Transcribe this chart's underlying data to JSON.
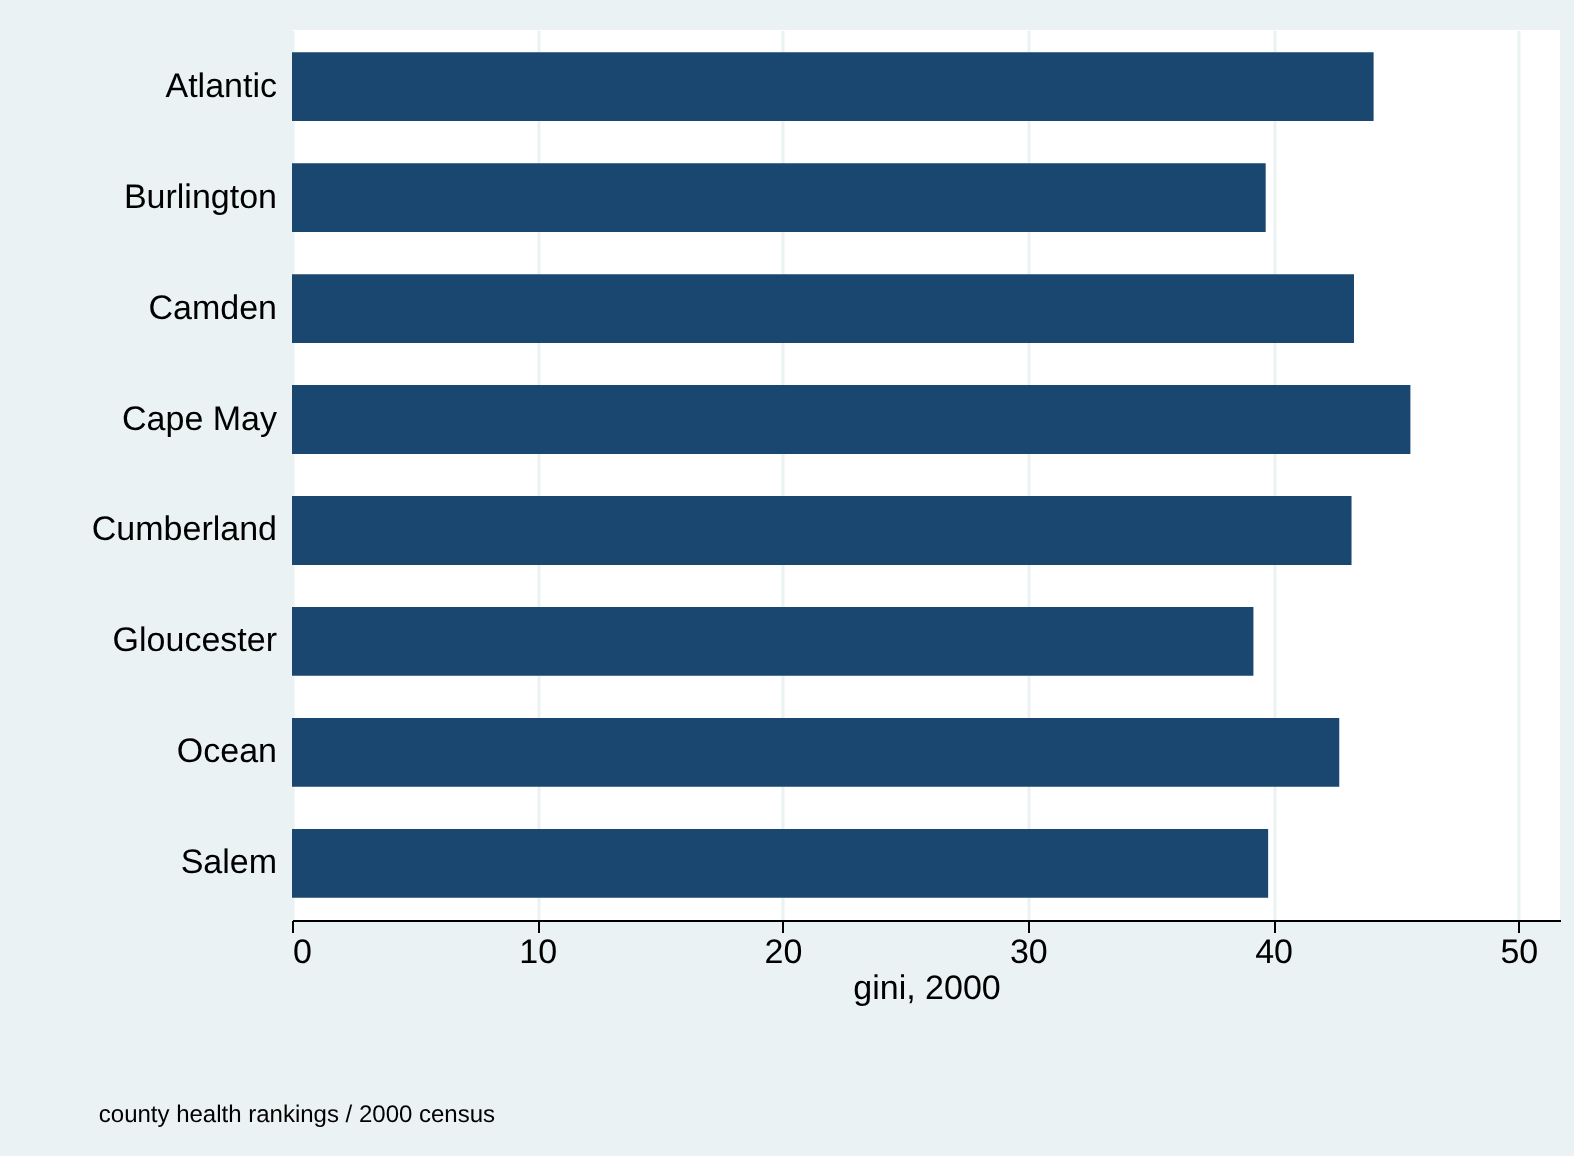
{
  "chart_data": {
    "type": "bar",
    "orientation": "horizontal",
    "categories": [
      "Atlantic",
      "Burlington",
      "Camden",
      "Cape May",
      "Cumberland",
      "Gloucester",
      "Ocean",
      "Salem"
    ],
    "values": [
      44.1,
      39.7,
      43.3,
      45.6,
      43.2,
      39.2,
      42.7,
      39.8
    ],
    "color": "#1a476f",
    "xlabel": "gini, 2000",
    "xlim": [
      0,
      51.7
    ],
    "xticks": [
      0,
      10,
      20,
      30,
      40,
      50
    ],
    "grid": "x",
    "annotations": [
      "county health rankings / 2000 census"
    ]
  }
}
